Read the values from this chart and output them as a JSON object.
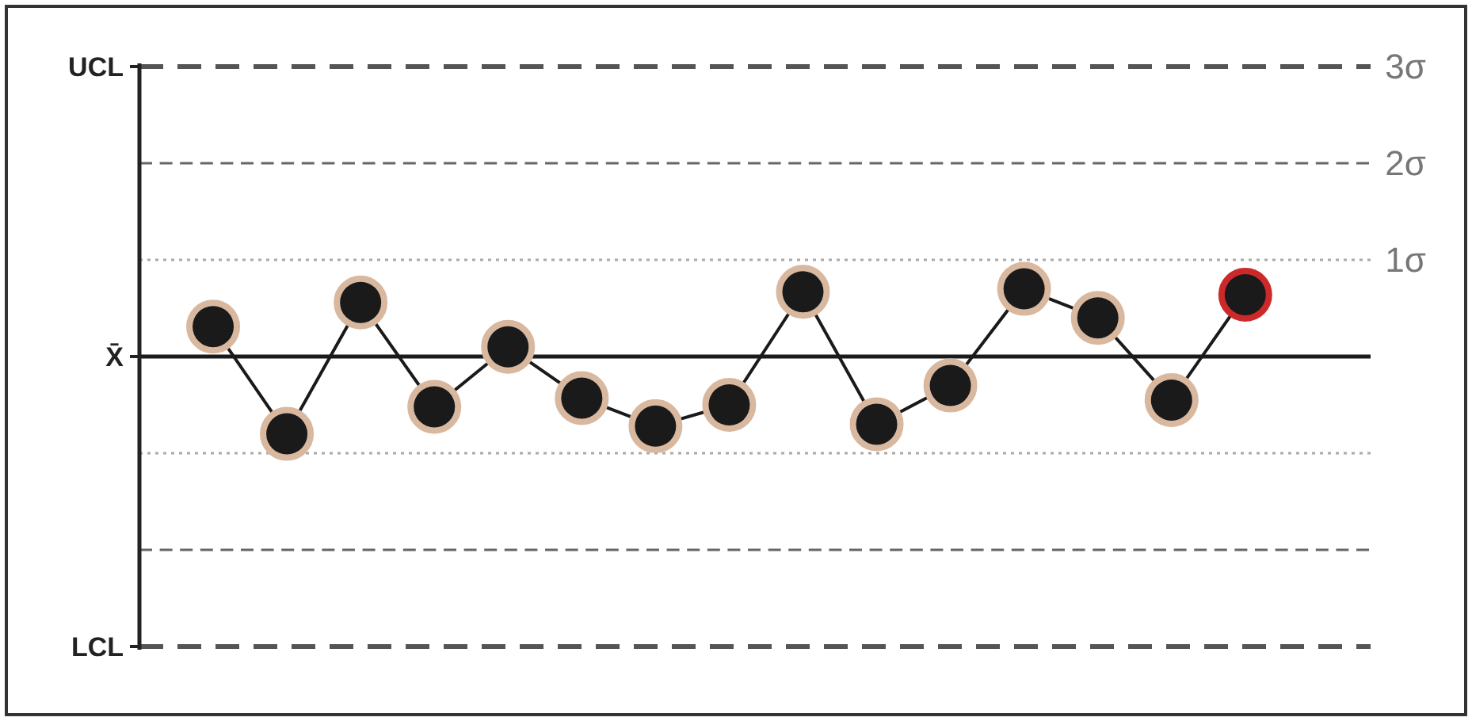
{
  "chart_data": {
    "type": "line",
    "categories": [
      null,
      null,
      null,
      null,
      null,
      null,
      null,
      null,
      null,
      null,
      null,
      null,
      null,
      null,
      null
    ],
    "ylim": [
      -3,
      3
    ],
    "yticks": [
      {
        "value": 3,
        "label": "3σ"
      },
      {
        "value": 2,
        "label": "2σ"
      },
      {
        "value": 1,
        "label": "1σ"
      }
    ],
    "series": [
      {
        "color": "#1a1a1a",
        "marker": "circle",
        "line_style": "solid",
        "colors": [
          "#d9b8a0",
          "#d9b8a0",
          "#d9b8a0",
          "#d9b8a0",
          "#d9b8a0",
          "#d9b8a0",
          "#d9b8a0",
          "#d9b8a0",
          "#d9b8a0",
          "#d9b8a0",
          "#d9b8a0",
          "#d9b8a0",
          "#d9b8a0",
          "#d9b8a0",
          "#cc2a2a"
        ],
        "values": [
          0.31,
          -0.8,
          0.56,
          -0.52,
          0.1,
          -0.43,
          -0.72,
          -0.5,
          0.67,
          -0.7,
          -0.3,
          0.7,
          0.4,
          -0.45,
          0.64
        ]
      }
    ],
    "ref_lines": [
      {
        "axis": "y",
        "value": 0,
        "label": "X̄",
        "color": "#1a1a1a",
        "line_style": "solid"
      },
      {
        "axis": "y",
        "value": 1,
        "color": "#aaaaaa",
        "line_style": "dotted"
      },
      {
        "axis": "y",
        "value": -1,
        "color": "#aaaaaa",
        "line_style": "dotted"
      },
      {
        "axis": "y",
        "value": 2,
        "color": "#666666",
        "line_style": "dashed"
      },
      {
        "axis": "y",
        "value": -2,
        "color": "#666666",
        "line_style": "dashed"
      },
      {
        "axis": "y",
        "value": 3,
        "label": "UCL",
        "color": "#555555",
        "line_style": "dashed"
      },
      {
        "axis": "y",
        "value": -3,
        "label": "LCL",
        "color": "#555555",
        "line_style": "dashed"
      }
    ]
  }
}
